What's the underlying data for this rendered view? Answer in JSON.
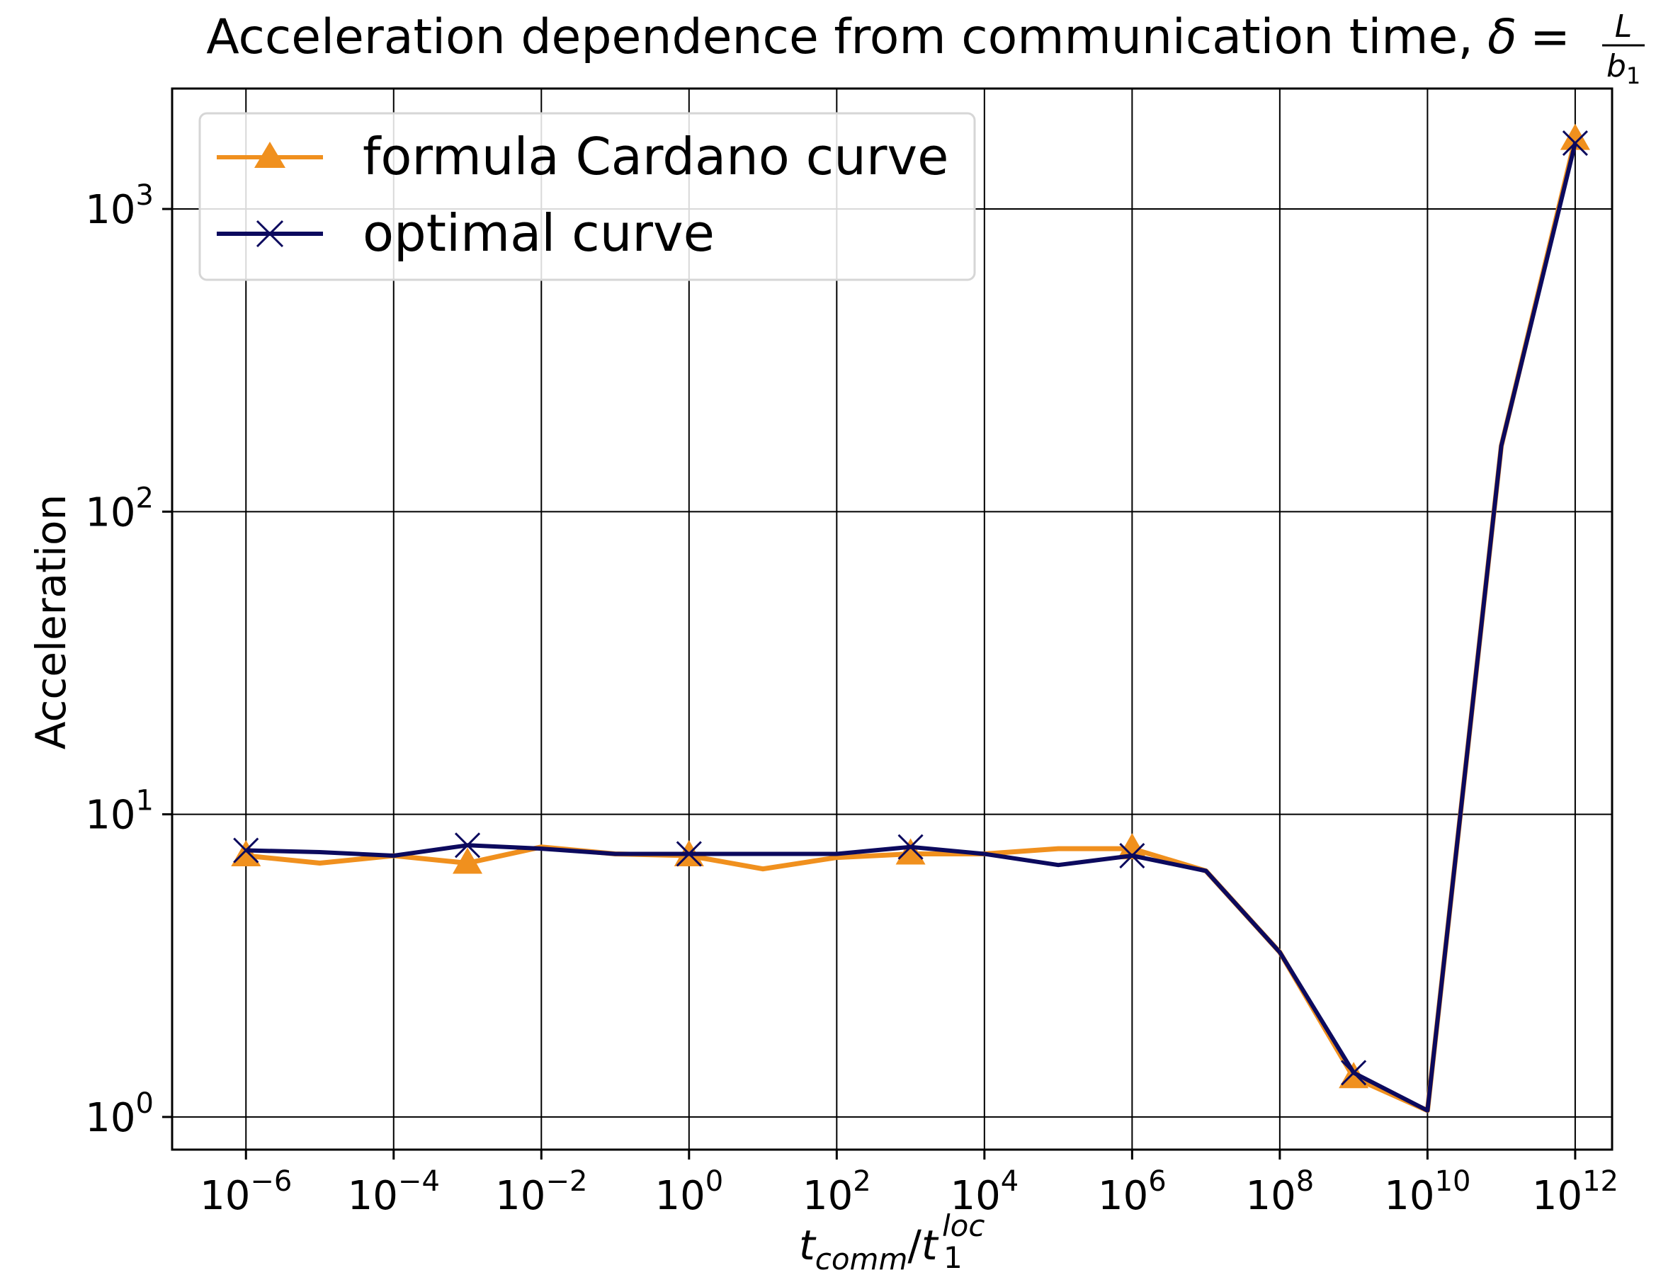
{
  "chart_data": {
    "type": "line",
    "title": "Acceleration dependence from communication time,",
    "title_math": {
      "lhs": "δ",
      "eq": "=",
      "numerator": "L",
      "denominator": "b",
      "denominator_sub": "1"
    },
    "xlabel": {
      "base": "t",
      "sub": "comm",
      "slash": "/",
      "base2": "t",
      "sub2": "1",
      "sup2": "loc"
    },
    "ylabel": "Acceleration",
    "xscale": "log",
    "yscale": "log",
    "xlim": [
      1e-07,
      3160000000000.0
    ],
    "ylim": [
      0.78,
      2500
    ],
    "grid": true,
    "legend_position": "upper-left",
    "x_ticks": [
      {
        "base": "10",
        "exp": "−6",
        "value": 1e-06
      },
      {
        "base": "10",
        "exp": "−4",
        "value": 0.0001
      },
      {
        "base": "10",
        "exp": "−2",
        "value": 0.01
      },
      {
        "base": "10",
        "exp": "0",
        "value": 1
      },
      {
        "base": "10",
        "exp": "2",
        "value": 100.0
      },
      {
        "base": "10",
        "exp": "4",
        "value": 10000.0
      },
      {
        "base": "10",
        "exp": "6",
        "value": 1000000.0
      },
      {
        "base": "10",
        "exp": "8",
        "value": 100000000.0
      },
      {
        "base": "10",
        "exp": "10",
        "value": 10000000000.0
      },
      {
        "base": "10",
        "exp": "12",
        "value": 1000000000000.0
      }
    ],
    "y_ticks": [
      {
        "base": "10",
        "exp": "0",
        "value": 1
      },
      {
        "base": "10",
        "exp": "1",
        "value": 10
      },
      {
        "base": "10",
        "exp": "2",
        "value": 100
      },
      {
        "base": "10",
        "exp": "3",
        "value": 1000
      }
    ],
    "series": [
      {
        "name": "formula Cardano curve",
        "color": "#f0901e",
        "marker": "triangle",
        "marker_every": 3,
        "x": [
          1e-06,
          1e-05,
          0.0001,
          0.001,
          0.01,
          0.1,
          1,
          10,
          100,
          1000,
          10000.0,
          100000.0,
          1000000.0,
          10000000.0,
          100000000.0,
          1000000000.0,
          10000000000.0,
          100000000000.0,
          1000000000000.0
        ],
        "y": [
          7.3,
          6.9,
          7.3,
          6.9,
          7.8,
          7.4,
          7.3,
          6.6,
          7.2,
          7.4,
          7.4,
          7.7,
          7.7,
          6.5,
          3.5,
          1.35,
          1.05,
          165,
          1700
        ]
      },
      {
        "name": "optimal curve",
        "color": "#0c0a5e",
        "marker": "x",
        "marker_every": 3,
        "x": [
          1e-06,
          1e-05,
          0.0001,
          0.001,
          0.01,
          0.1,
          1,
          10,
          100,
          1000,
          10000.0,
          100000.0,
          1000000.0,
          10000000.0,
          100000000.0,
          1000000000.0,
          10000000000.0,
          100000000000.0,
          1000000000000.0
        ],
        "y": [
          7.6,
          7.5,
          7.3,
          7.9,
          7.7,
          7.4,
          7.4,
          7.4,
          7.4,
          7.8,
          7.4,
          6.8,
          7.3,
          6.5,
          3.5,
          1.4,
          1.05,
          165,
          1650
        ]
      }
    ]
  }
}
